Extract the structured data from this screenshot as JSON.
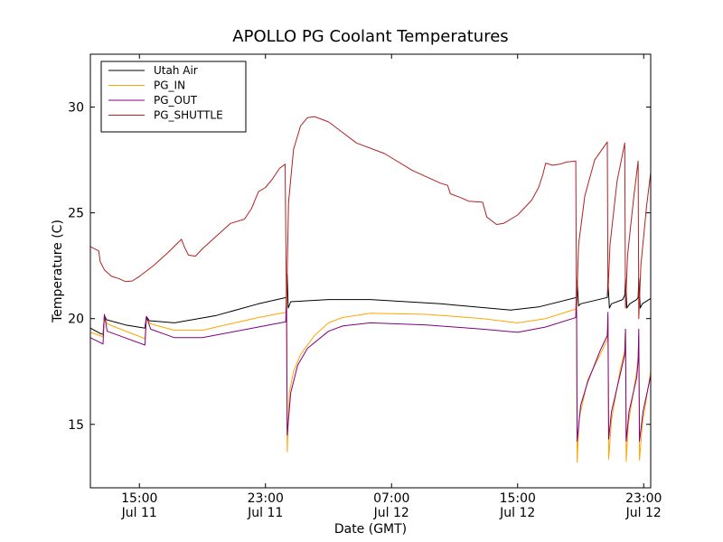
{
  "chart_data": {
    "type": "line",
    "title": "APOLLO PG Coolant Temperatures",
    "xlabel": "Date (GMT)",
    "ylabel": "Temperature (C)",
    "x_unit": "hours since Jul 11 09:00 GMT",
    "xlim": [
      0,
      40
    ],
    "ylim": [
      12,
      32.5
    ],
    "yticks": [
      15,
      20,
      25,
      30
    ],
    "xticks": [
      {
        "x": 3.5,
        "line1": "15:00",
        "line2": "Jul 11"
      },
      {
        "x": 12.5,
        "line1": "23:00",
        "line2": "Jul 11"
      },
      {
        "x": 21.5,
        "line1": "07:00",
        "line2": "Jul 12"
      },
      {
        "x": 30.5,
        "line1": "15:00",
        "line2": "Jul 12"
      },
      {
        "x": 39.5,
        "line1": "23:00",
        "line2": "Jul 12"
      }
    ],
    "grid": false,
    "legend_position": "top-left",
    "series": [
      {
        "name": "Utah Air",
        "color": "#000000",
        "points": [
          [
            0,
            19.55
          ],
          [
            0.7,
            19.3
          ],
          [
            0.9,
            19.25
          ],
          [
            1.0,
            20.15
          ],
          [
            1.15,
            19.95
          ],
          [
            2.5,
            19.7
          ],
          [
            3.9,
            19.55
          ],
          [
            4.0,
            20.1
          ],
          [
            4.2,
            19.9
          ],
          [
            6.0,
            19.8
          ],
          [
            9.0,
            20.15
          ],
          [
            12.0,
            20.7
          ],
          [
            14.0,
            21.0
          ],
          [
            14.05,
            22.1
          ],
          [
            14.12,
            20.5
          ],
          [
            14.3,
            20.8
          ],
          [
            17.0,
            20.9
          ],
          [
            20.0,
            20.9
          ],
          [
            25.0,
            20.7
          ],
          [
            30.0,
            20.4
          ],
          [
            32.0,
            20.55
          ],
          [
            34.7,
            21.0
          ],
          [
            34.75,
            21.8
          ],
          [
            34.85,
            20.6
          ],
          [
            35.0,
            20.7
          ],
          [
            36.9,
            21.0
          ],
          [
            36.95,
            21.8
          ],
          [
            37.05,
            20.5
          ],
          [
            37.2,
            20.7
          ],
          [
            38.0,
            20.9
          ],
          [
            38.15,
            21.1
          ],
          [
            38.2,
            21.9
          ],
          [
            38.3,
            20.5
          ],
          [
            38.5,
            20.7
          ],
          [
            39.0,
            20.9
          ],
          [
            39.1,
            21.0
          ],
          [
            39.15,
            21.9
          ],
          [
            39.25,
            20.5
          ],
          [
            39.4,
            20.7
          ],
          [
            40.0,
            20.95
          ]
        ]
      },
      {
        "name": "PG_IN",
        "color": "#ffa500",
        "points": [
          [
            0,
            19.35
          ],
          [
            0.9,
            19.15
          ],
          [
            1.0,
            20.1
          ],
          [
            1.2,
            19.75
          ],
          [
            3.9,
            19.05
          ],
          [
            4.0,
            20.0
          ],
          [
            4.3,
            19.75
          ],
          [
            6.0,
            19.45
          ],
          [
            8.0,
            19.45
          ],
          [
            10.0,
            19.75
          ],
          [
            12.0,
            20.05
          ],
          [
            13.95,
            20.3
          ],
          [
            14.0,
            21.5
          ],
          [
            14.05,
            13.7
          ],
          [
            14.2,
            16.5
          ],
          [
            14.5,
            17.5
          ],
          [
            15.0,
            18.3
          ],
          [
            16.0,
            19.2
          ],
          [
            17.0,
            19.8
          ],
          [
            18.0,
            20.05
          ],
          [
            20.0,
            20.25
          ],
          [
            24.0,
            20.2
          ],
          [
            28.0,
            20.0
          ],
          [
            30.5,
            19.8
          ],
          [
            32.5,
            20.0
          ],
          [
            34.65,
            20.45
          ],
          [
            34.7,
            21.2
          ],
          [
            34.75,
            13.2
          ],
          [
            34.9,
            15.3
          ],
          [
            35.5,
            17.1
          ],
          [
            36.9,
            19.0
          ],
          [
            36.95,
            20.0
          ],
          [
            37.0,
            13.35
          ],
          [
            37.2,
            15.2
          ],
          [
            37.8,
            17.5
          ],
          [
            38.15,
            18.5
          ],
          [
            38.2,
            19.5
          ],
          [
            38.25,
            13.25
          ],
          [
            38.4,
            15.0
          ],
          [
            39.0,
            17.5
          ],
          [
            39.1,
            18.2
          ],
          [
            39.15,
            19.2
          ],
          [
            39.2,
            13.3
          ],
          [
            39.4,
            15.0
          ],
          [
            40.0,
            17.5
          ]
        ]
      },
      {
        "name": "PG_OUT",
        "color": "#800080",
        "points": [
          [
            0,
            19.1
          ],
          [
            0.9,
            18.8
          ],
          [
            1.0,
            20.2
          ],
          [
            1.2,
            19.4
          ],
          [
            3.9,
            18.75
          ],
          [
            4.0,
            20.1
          ],
          [
            4.3,
            19.5
          ],
          [
            6.0,
            19.1
          ],
          [
            8.0,
            19.1
          ],
          [
            10.0,
            19.35
          ],
          [
            12.0,
            19.6
          ],
          [
            13.95,
            19.85
          ],
          [
            14.0,
            21.2
          ],
          [
            14.05,
            14.5
          ],
          [
            14.3,
            16.5
          ],
          [
            14.8,
            17.8
          ],
          [
            15.5,
            18.6
          ],
          [
            17.0,
            19.4
          ],
          [
            18.0,
            19.65
          ],
          [
            20.0,
            19.8
          ],
          [
            24.0,
            19.7
          ],
          [
            28.0,
            19.5
          ],
          [
            30.5,
            19.35
          ],
          [
            32.5,
            19.6
          ],
          [
            34.65,
            20.05
          ],
          [
            34.7,
            21.5
          ],
          [
            34.75,
            14.2
          ],
          [
            35.0,
            15.9
          ],
          [
            35.5,
            17.0
          ],
          [
            36.4,
            18.5
          ],
          [
            36.9,
            19.2
          ],
          [
            36.95,
            20.3
          ],
          [
            37.0,
            14.3
          ],
          [
            37.2,
            15.6
          ],
          [
            37.8,
            17.3
          ],
          [
            38.15,
            18.3
          ],
          [
            38.2,
            19.5
          ],
          [
            38.25,
            14.2
          ],
          [
            38.45,
            15.6
          ],
          [
            39.0,
            17.2
          ],
          [
            39.1,
            18.0
          ],
          [
            39.15,
            19.5
          ],
          [
            39.2,
            14.2
          ],
          [
            39.45,
            15.6
          ],
          [
            40.0,
            17.3
          ]
        ]
      },
      {
        "name": "PG_SHUTTLE",
        "color": "#b22222",
        "points": [
          [
            0,
            23.4
          ],
          [
            0.6,
            23.2
          ],
          [
            0.7,
            22.7
          ],
          [
            1.0,
            22.3
          ],
          [
            1.5,
            22.0
          ],
          [
            2.0,
            21.9
          ],
          [
            2.5,
            21.75
          ],
          [
            3.0,
            21.78
          ],
          [
            3.5,
            22.0
          ],
          [
            4.5,
            22.5
          ],
          [
            5.5,
            23.1
          ],
          [
            6.5,
            23.75
          ],
          [
            6.7,
            23.4
          ],
          [
            7.0,
            23.0
          ],
          [
            7.5,
            22.95
          ],
          [
            8.0,
            23.3
          ],
          [
            9.0,
            23.9
          ],
          [
            10.0,
            24.5
          ],
          [
            11.0,
            24.7
          ],
          [
            11.5,
            25.2
          ],
          [
            12.0,
            26.0
          ],
          [
            12.5,
            26.2
          ],
          [
            13.0,
            26.6
          ],
          [
            13.5,
            27.1
          ],
          [
            13.9,
            27.3
          ],
          [
            14.0,
            20.5
          ],
          [
            14.15,
            25.5
          ],
          [
            14.5,
            28.0
          ],
          [
            15.0,
            29.1
          ],
          [
            15.5,
            29.5
          ],
          [
            16.0,
            29.55
          ],
          [
            17.0,
            29.3
          ],
          [
            18.0,
            28.8
          ],
          [
            19.0,
            28.3
          ],
          [
            21.0,
            27.8
          ],
          [
            23.0,
            27.0
          ],
          [
            24.0,
            26.7
          ],
          [
            25.0,
            26.4
          ],
          [
            25.5,
            26.3
          ],
          [
            25.7,
            25.9
          ],
          [
            26.5,
            25.7
          ],
          [
            27.0,
            25.55
          ],
          [
            28.0,
            25.5
          ],
          [
            28.3,
            24.8
          ],
          [
            29.0,
            24.45
          ],
          [
            29.5,
            24.5
          ],
          [
            30.5,
            24.9
          ],
          [
            31.5,
            25.6
          ],
          [
            32.0,
            26.2
          ],
          [
            32.3,
            26.8
          ],
          [
            32.5,
            27.35
          ],
          [
            33.0,
            27.25
          ],
          [
            33.5,
            27.3
          ],
          [
            34.0,
            27.4
          ],
          [
            34.65,
            27.45
          ],
          [
            34.7,
            20.4
          ],
          [
            34.85,
            23.5
          ],
          [
            35.3,
            25.8
          ],
          [
            36.0,
            27.5
          ],
          [
            36.9,
            28.35
          ],
          [
            36.95,
            21.2
          ],
          [
            37.1,
            23.5
          ],
          [
            37.6,
            26.5
          ],
          [
            38.15,
            28.3
          ],
          [
            38.2,
            20.5
          ],
          [
            38.35,
            23.0
          ],
          [
            38.8,
            25.8
          ],
          [
            39.1,
            27.45
          ],
          [
            39.15,
            20.0
          ],
          [
            39.3,
            22.5
          ],
          [
            39.7,
            25.3
          ],
          [
            40.0,
            26.9
          ]
        ]
      }
    ]
  }
}
